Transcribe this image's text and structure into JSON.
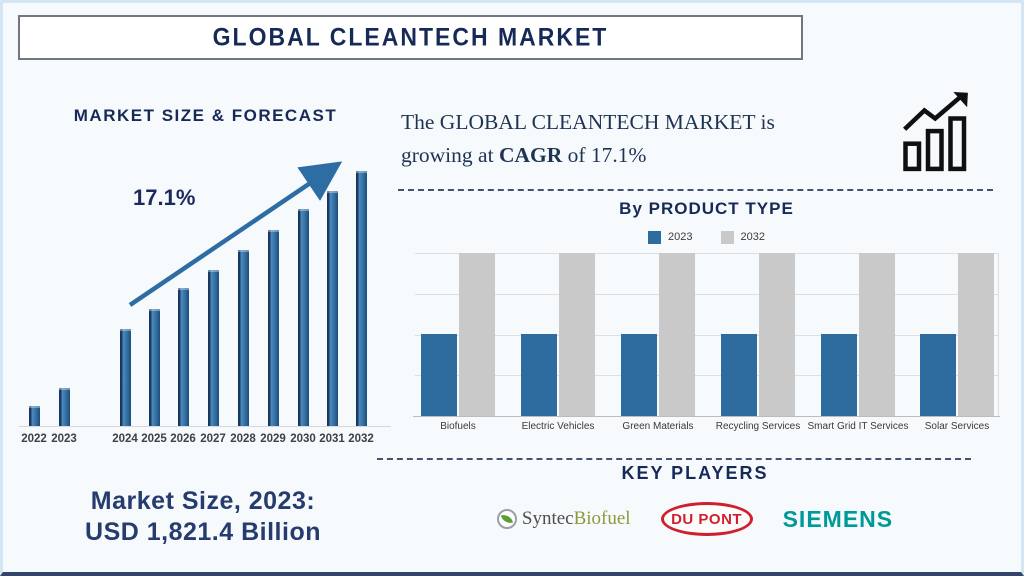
{
  "banner": {
    "title": "GLOBAL CLEANTECH MARKET"
  },
  "forecast": {
    "heading": "MARKET SIZE & FORECAST",
    "cagr_label": "17.1%",
    "footer_line1": "Market Size, 2023:",
    "footer_line2": "USD 1,821.4 Billion"
  },
  "cagr_note": {
    "line1": "The GLOBAL CLEANTECH MARKET is",
    "line2_prefix": "growing at ",
    "line2_bold": "CAGR",
    "line2_suffix": " of 17.1%",
    "icon": "growth-bars-arrow-icon"
  },
  "product_type": {
    "heading": "By PRODUCT TYPE",
    "legend": [
      {
        "label": "2023",
        "color": "#2e6b9e"
      },
      {
        "label": "2032",
        "color": "#c9c9c9"
      }
    ]
  },
  "key_players": {
    "heading": "KEY PLAYERS",
    "players": [
      {
        "name": "Syntec Biofuel",
        "text_primary": "Syntec",
        "text_secondary": "Biofuel",
        "icon": "leaf-icon"
      },
      {
        "name": "DuPont",
        "label": "DU PONT"
      },
      {
        "name": "Siemens",
        "label": "SIEMENS"
      }
    ]
  },
  "colors": {
    "accent_navy": "#172a57",
    "bar_blue": "#2e6b9e",
    "bar_gray": "#c9c9c9",
    "arrow_blue": "#2e6da4",
    "dupont_red": "#d0202e",
    "siemens_teal": "#009999",
    "syntec_green": "#8a9a3b"
  },
  "chart_data": [
    {
      "type": "bar",
      "title": "MARKET SIZE & FORECAST",
      "categories": [
        "2022",
        "2023",
        "2024",
        "2025",
        "2026",
        "2027",
        "2028",
        "2029",
        "2030",
        "2031",
        "2032"
      ],
      "values": [
        8,
        15,
        38,
        46,
        54,
        61,
        69,
        77,
        85,
        92,
        100
      ],
      "values_unit": "relative bar height, % of 2032 bar (no value axis shown)",
      "annotation": {
        "text": "17.1%",
        "meaning": "CAGR trend arrow rising left-to-right"
      },
      "known_values": {
        "2023": "USD 1,821.4 Billion"
      },
      "bar_color": "#2e6b9e",
      "xlabel": "",
      "ylabel": "",
      "grid": false,
      "legend": false
    },
    {
      "type": "bar",
      "title": "By PRODUCT TYPE",
      "categories": [
        "Biofuels",
        "Electric Vehicles",
        "Green Materials",
        "Recycling Services",
        "Smart Grid IT Services",
        "Solar Services"
      ],
      "series": [
        {
          "name": "2023",
          "color": "#2e6b9e",
          "values": [
            50,
            50,
            50,
            50,
            50,
            50
          ]
        },
        {
          "name": "2032",
          "color": "#c9c9c9",
          "values": [
            100,
            100,
            100,
            100,
            100,
            100
          ]
        }
      ],
      "values_unit": "relative bar height, % of gridline span (no value axis labeled)",
      "legend_position": "top",
      "grid": true,
      "xlabel": "",
      "ylabel": ""
    }
  ]
}
